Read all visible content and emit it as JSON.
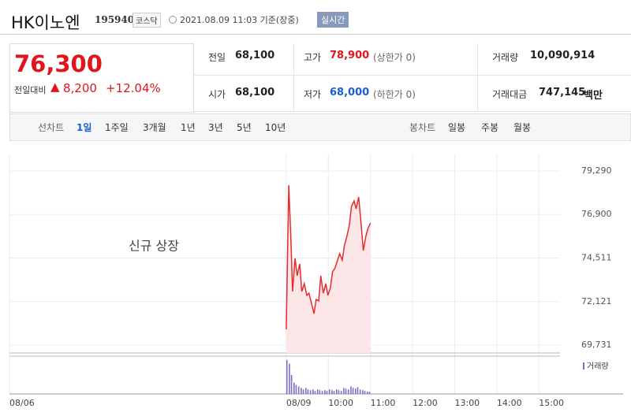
{
  "header": {
    "name": "HK이노엔",
    "code": "195940",
    "market": "코스닥",
    "timestamp": "2021.08.09 11:03 기준(장중)",
    "realtime": "실시간"
  },
  "quote": {
    "price": "76,300",
    "change_label": "전일대비",
    "change": "8,200",
    "change_pct": "+12.04%"
  },
  "stats": [
    {
      "label": "전일",
      "value": "68,100"
    },
    {
      "label": "고가",
      "value": "78,900",
      "note": "(상한가 0)"
    },
    {
      "label": "거래량",
      "value": "10,090,914"
    },
    {
      "label": "시가",
      "value": "68,100"
    },
    {
      "label": "저가",
      "value": "68,000",
      "note": "(하한가 0)"
    },
    {
      "label": "거래대금",
      "value": "747,145",
      "unit": "백만"
    }
  ],
  "tabs": {
    "line_label": "선차트",
    "line": [
      "1일",
      "1주일",
      "3개월",
      "1년",
      "3년",
      "5년",
      "10년"
    ],
    "candle_label": "봉차트",
    "candle": [
      "일봉",
      "주봉",
      "월봉"
    ]
  },
  "chart_data": {
    "type": "line",
    "annotation": "신규 상장",
    "color": "#e52c2c",
    "fill": "#fde6e8",
    "x": [
      9.0,
      9.06,
      9.11,
      9.15,
      9.21,
      9.26,
      9.32,
      9.37,
      9.43,
      9.49,
      9.54,
      9.6,
      9.66,
      9.71,
      9.77,
      9.82,
      9.88,
      9.94,
      9.99,
      10.05,
      10.1,
      10.16,
      10.22,
      10.27,
      10.33,
      10.38,
      10.44,
      10.5,
      10.55,
      10.61,
      10.66,
      10.72,
      10.78,
      10.83,
      10.89,
      10.94,
      11.0
    ],
    "values": [
      70596,
      78511,
      75700,
      72672,
      74489,
      73537,
      74186,
      72672,
      73105,
      72456,
      72586,
      72023,
      71461,
      72240,
      72153,
      73537,
      72586,
      73105,
      72456,
      72888,
      73753,
      73970,
      74402,
      74748,
      74402,
      75180,
      75700,
      76348,
      77343,
      77646,
      77213,
      77862,
      76348,
      74921,
      75700,
      76132,
      76435
    ],
    "xlim": [
      2.43,
      15.5
    ],
    "ylim": [
      69300,
      80240
    ],
    "yticks": [
      {
        "value": 69731,
        "label": "69,731"
      },
      {
        "value": 72121,
        "label": "72,121"
      },
      {
        "value": 74511,
        "label": "74,511"
      },
      {
        "value": 76900,
        "label": "76,900"
      },
      {
        "value": 79290,
        "label": "79,290"
      }
    ],
    "xticks": [
      {
        "value": 2.43,
        "label": "08/06"
      },
      {
        "value": 9,
        "label": "08/09"
      },
      {
        "value": 10,
        "label": "10:00"
      },
      {
        "value": 11,
        "label": "11:00"
      },
      {
        "value": 12,
        "label": "12:00"
      },
      {
        "value": 13,
        "label": "13:00"
      },
      {
        "value": 14,
        "label": "14:00"
      },
      {
        "value": 15,
        "label": "15:00"
      }
    ],
    "grid": true,
    "volume": {
      "name": "거래량",
      "color": "#7b6fc4",
      "ylim": [
        0,
        1000000
      ],
      "x": [
        9.02,
        9.08,
        9.13,
        9.19,
        9.24,
        9.3,
        9.36,
        9.41,
        9.47,
        9.52,
        9.58,
        9.64,
        9.69,
        9.75,
        9.8,
        9.86,
        9.92,
        9.97,
        10.03,
        10.09,
        10.14,
        10.2,
        10.25,
        10.31,
        10.37,
        10.42,
        10.48,
        10.54,
        10.59,
        10.65,
        10.7,
        10.76,
        10.82,
        10.87,
        10.93,
        10.98
      ],
      "values": [
        900000,
        800000,
        500000,
        300000,
        240000,
        200000,
        160000,
        120000,
        160000,
        120000,
        100000,
        120000,
        80000,
        120000,
        100000,
        80000,
        100000,
        80000,
        120000,
        100000,
        80000,
        120000,
        100000,
        80000,
        160000,
        140000,
        120000,
        200000,
        160000,
        140000,
        180000,
        120000,
        100000,
        80000,
        60000,
        60000
      ]
    }
  }
}
